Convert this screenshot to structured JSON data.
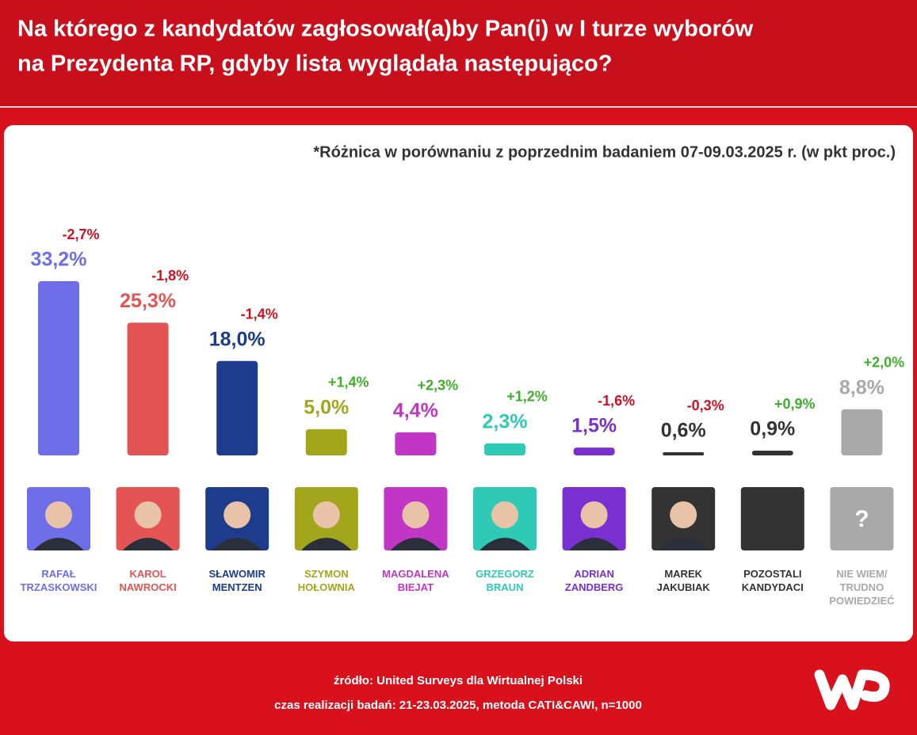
{
  "header": {
    "title_line1": "Na którego z kandydatów zagłosował(a)by Pan(i) w I turze wyborów",
    "title_line2": "na Prezydenta RP, gdyby lista wyglądała następująco?"
  },
  "chart_data": {
    "type": "bar",
    "subtitle": "*Różnica w porównaniu z poprzednim badaniem 07-09.03.2025 r. (w pkt proc.)",
    "categories": [
      "RAFAŁ TRZASKOWSKI",
      "KAROL NAWROCKI",
      "SŁAWOMIR MENTZEN",
      "SZYMON HOŁOWNIA",
      "MAGDALENA BIEJAT",
      "GRZEGORZ BRAUN",
      "ADRIAN ZANDBERG",
      "MAREK JAKUBIAK",
      "POZOSTALI KANDYDACI",
      "NIE WIEM/ TRUDNO POWIEDZIEĆ"
    ],
    "values": [
      33.2,
      25.3,
      18.0,
      5.0,
      4.4,
      2.3,
      1.5,
      0.6,
      0.9,
      8.8
    ],
    "value_labels": [
      "33,2%",
      "25,3%",
      "18,0%",
      "5,0%",
      "4,4%",
      "2,3%",
      "1,5%",
      "0,6%",
      "0,9%",
      "8,8%"
    ],
    "changes": [
      -2.7,
      -1.8,
      -1.4,
      1.4,
      2.3,
      1.2,
      -1.6,
      -0.3,
      0.9,
      2.0
    ],
    "change_labels": [
      "-2,7%",
      "-1,8%",
      "-1,4%",
      "+1,4%",
      "+2,3%",
      "+1,2%",
      "-1,6%",
      "-0,3%",
      "+0,9%",
      "+2,0%"
    ],
    "colors": [
      "#6e6ee8",
      "#e45454",
      "#1d3c8c",
      "#a2a61a",
      "#c236c6",
      "#2ecab6",
      "#7a30d0",
      "#333333",
      "#333333",
      "#a9a9a9"
    ],
    "unknown_icon": "?",
    "ylim": [
      0,
      40
    ]
  },
  "footer": {
    "source": "źródło: United Surveys dla Wirtualnej Polski",
    "method": "czas realizacji badań: 21-23.03.2025, metoda CATI&CAWI, n=1000"
  }
}
